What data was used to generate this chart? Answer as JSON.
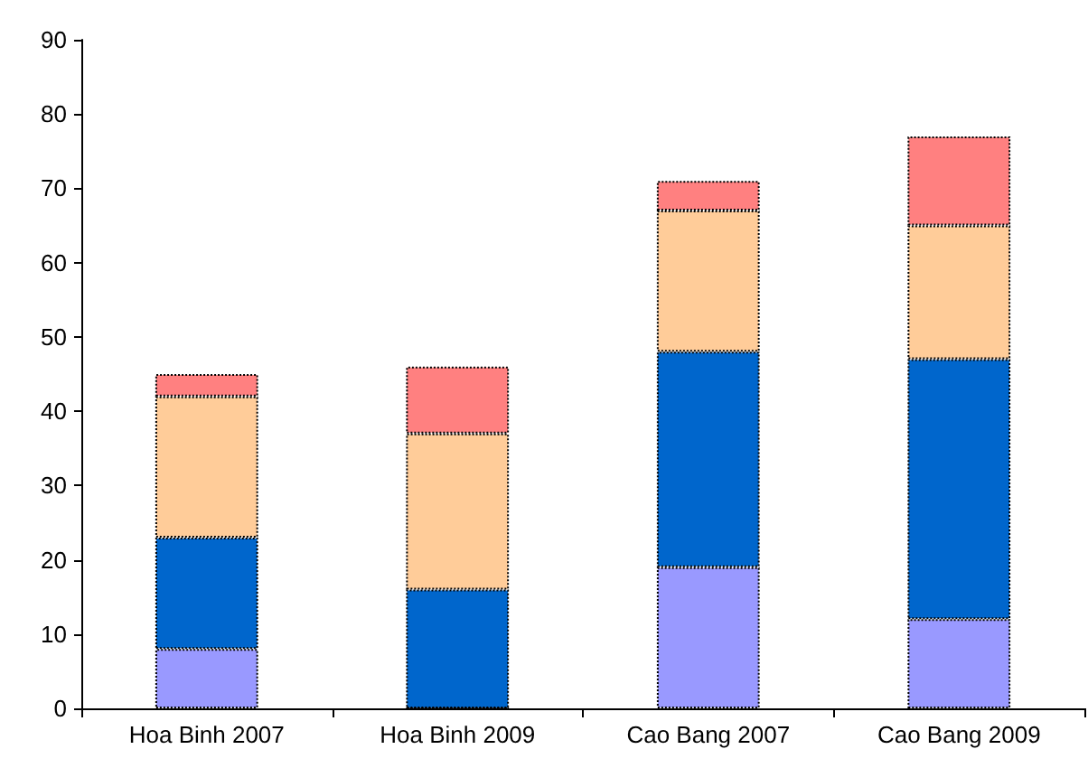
{
  "chart_data": {
    "type": "bar",
    "stacked": true,
    "categories": [
      "Hoa Binh 2007",
      "Hoa Binh 2009",
      "Cao Bang 2007",
      "Cao Bang 2009"
    ],
    "series": [
      {
        "color": "#9999ff",
        "values": [
          8,
          0,
          19,
          12
        ]
      },
      {
        "color": "#0066cc",
        "values": [
          15,
          16,
          29,
          35
        ]
      },
      {
        "color": "#ffcc99",
        "values": [
          19,
          21,
          19,
          18
        ]
      },
      {
        "color": "#ff8080",
        "values": [
          3,
          9,
          4,
          12
        ]
      }
    ],
    "ylim": [
      0,
      90
    ],
    "yticks": [
      0,
      10,
      20,
      30,
      40,
      50,
      60,
      70,
      80,
      90
    ]
  }
}
